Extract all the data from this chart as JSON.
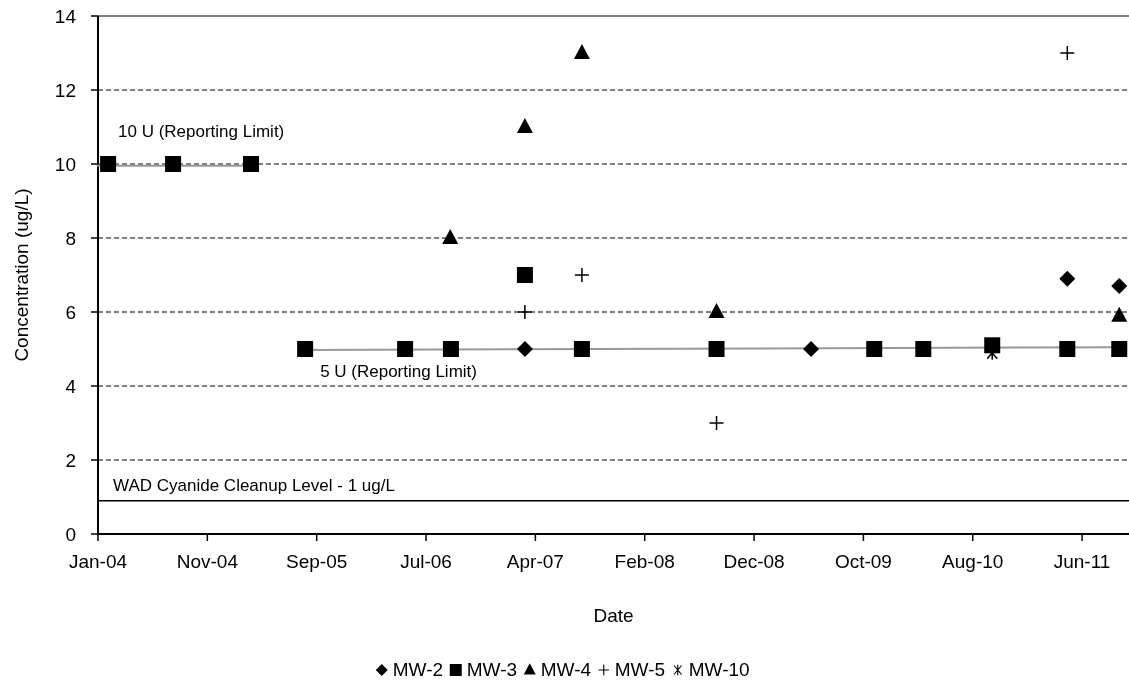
{
  "chart_data": {
    "type": "scatter",
    "xlabel": "Date",
    "ylabel": "Concentration (ug/L)",
    "xlim": [
      "2004-01-04",
      "2011-10-31"
    ],
    "xticks": [
      {
        "value": "2004-01-04",
        "label": "Jan-04"
      },
      {
        "value": "2004-11-02",
        "label": "Nov-04"
      },
      {
        "value": "2005-09-01",
        "label": "Sep-05"
      },
      {
        "value": "2006-07-01",
        "label": "Jul-06"
      },
      {
        "value": "2007-04-30",
        "label": "Apr-07"
      },
      {
        "value": "2008-02-27",
        "label": "Feb-08"
      },
      {
        "value": "2008-12-26",
        "label": "Dec-08"
      },
      {
        "value": "2009-10-25",
        "label": "Oct-09"
      },
      {
        "value": "2010-08-24",
        "label": "Aug-10"
      },
      {
        "value": "2011-06-23",
        "label": "Jun-11"
      }
    ],
    "ylim": [
      0,
      14
    ],
    "yticks": [
      0,
      2,
      4,
      6,
      8,
      10,
      12,
      14
    ],
    "grid": "y",
    "legend": "bottom",
    "series": [
      {
        "type": "line",
        "color": "#999999",
        "marker": "none",
        "x": [
          "2004-01-04",
          "2005-03-03"
        ],
        "values": [
          9.95,
          9.95
        ]
      },
      {
        "type": "line",
        "color": "#999999",
        "marker": "none",
        "x": [
          "2005-07-31",
          "2011-10-04"
        ],
        "values": [
          4.97,
          5.05
        ]
      },
      {
        "name": "MW-2",
        "color": "#000000",
        "marker": "diamond",
        "x": [
          "2007-04-01",
          "2009-06-02",
          "2011-05-13",
          "2011-10-04"
        ],
        "values": [
          5,
          5,
          6.9,
          6.7
        ]
      },
      {
        "name": "MW-3",
        "color": "#000000",
        "marker": "square",
        "x": [
          "2004-02-01",
          "2004-07-30",
          "2005-03-03",
          "2005-07-31",
          "2006-05-04",
          "2006-09-08",
          "2007-04-01",
          "2007-09-06",
          "2008-09-13",
          "2009-11-24",
          "2010-04-09",
          "2010-10-17",
          "2011-05-13",
          "2011-10-04"
        ],
        "values": [
          10,
          10,
          10,
          5,
          5,
          5,
          7,
          5,
          5,
          5,
          5,
          5.1,
          5,
          5
        ]
      },
      {
        "name": "MW-4",
        "color": "#000000",
        "marker": "triangle",
        "x": [
          "2006-09-06",
          "2007-04-01",
          "2007-09-06",
          "2008-09-13",
          "2011-10-04"
        ],
        "values": [
          8,
          11,
          13,
          6,
          5.9
        ]
      },
      {
        "name": "MW-5",
        "color": "#000000",
        "marker": "plus",
        "x": [
          "2007-04-01",
          "2007-09-06",
          "2008-09-13",
          "2011-05-13"
        ],
        "values": [
          6,
          7,
          3,
          13
        ]
      },
      {
        "name": "MW-10",
        "color": "#000000",
        "marker": "cross",
        "x": [
          "2010-10-17"
        ],
        "values": [
          4.9
        ]
      }
    ],
    "ref_lines": [
      {
        "axis": "y",
        "value": 0.9,
        "label": "WAD Cyanide Cleanup Level - 1 ug/L",
        "color": "#000000"
      }
    ],
    "annotations": [
      "10 U (Reporting Limit)",
      "5 U (Reporting Limit)"
    ]
  }
}
